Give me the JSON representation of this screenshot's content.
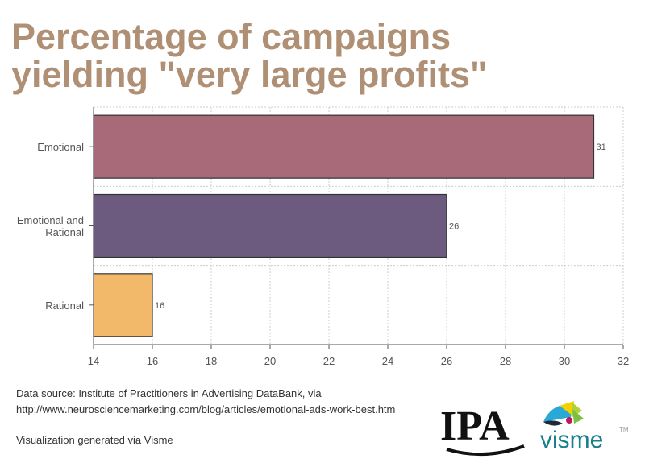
{
  "title_lines": [
    "Percentage of campaigns",
    "yielding \"very large profits\""
  ],
  "chart_data": {
    "type": "bar",
    "orientation": "horizontal",
    "title": "Percentage of campaigns yielding \"very large profits\"",
    "categories": [
      {
        "label_lines": [
          "Emotional"
        ],
        "value": 31,
        "color": "#a86a78"
      },
      {
        "label_lines": [
          "Emotional and",
          "Rational"
        ],
        "value": 26,
        "color": "#6c5b7e"
      },
      {
        "label_lines": [
          "Rational"
        ],
        "value": 16,
        "color": "#f3b96a"
      }
    ],
    "xlim": [
      14,
      32
    ],
    "xticks": [
      14,
      16,
      18,
      20,
      22,
      24,
      26,
      28,
      30,
      32
    ],
    "grid": true,
    "xlabel": "",
    "ylabel": ""
  },
  "footer": {
    "source_line1": "Data source: Institute of Practitioners in Advertising DataBank, via",
    "source_line2": "http://www.neurosciencemarketing.com/blog/articles/emotional-ads-work-best.htm",
    "generated": "Visualization generated via Visme"
  },
  "logos": {
    "ipa": "IPA",
    "visme": "visme",
    "tm": "TM",
    "visme_color": "#1a7f8c",
    "ipa_color": "#111111"
  }
}
